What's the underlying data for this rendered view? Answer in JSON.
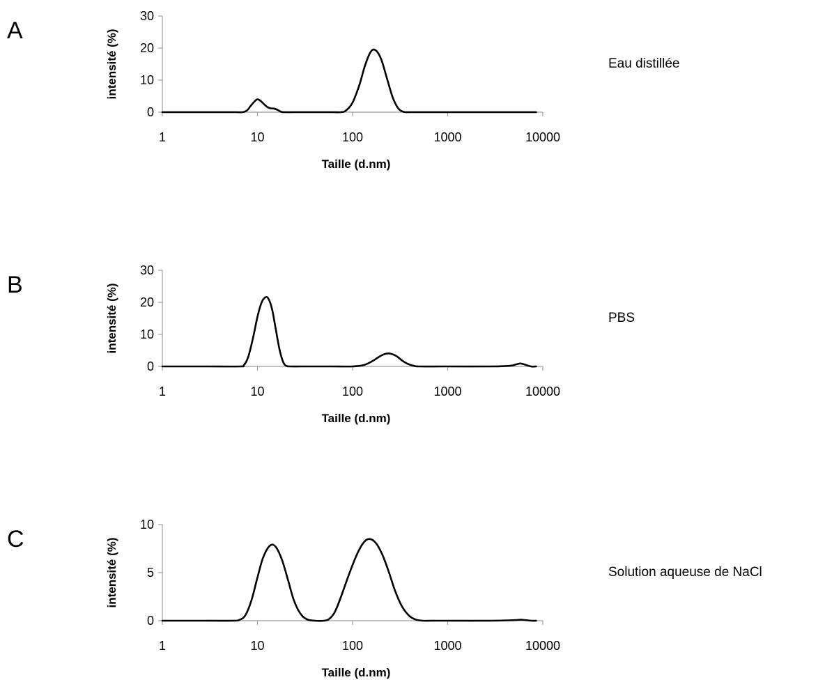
{
  "chart_data": [
    {
      "type": "line",
      "panel": "A",
      "sample_label": "Eau distillée",
      "xlabel": "Taille (d.nm)",
      "ylabel": "intensité (%)",
      "xscale": "log",
      "xlim": [
        1,
        10000
      ],
      "ylim": [
        0,
        30
      ],
      "xticks": [
        "1",
        "10",
        "100",
        "1000",
        "10000"
      ],
      "yticks": [
        "0",
        "10",
        "20",
        "30"
      ],
      "legend": "none",
      "grid": false,
      "series": [
        {
          "x": [
            1,
            2,
            4,
            6,
            7,
            7.8,
            8.5,
            9.3,
            10,
            10.8,
            11.8,
            12.7,
            13.7,
            15,
            16.3,
            17.5,
            19,
            25,
            40,
            60,
            75,
            85,
            100,
            118,
            135,
            155,
            175,
            200,
            230,
            265,
            300,
            330,
            360,
            400,
            600,
            1000,
            2000,
            5000,
            8500
          ],
          "y": [
            0,
            0,
            0,
            0,
            0,
            0.6,
            2.0,
            3.3,
            4.0,
            3.5,
            2.4,
            1.6,
            1.2,
            1.1,
            0.7,
            0.2,
            0,
            0,
            0,
            0,
            0,
            0.5,
            3.0,
            8.5,
            14.5,
            18.8,
            19.3,
            16.5,
            10.5,
            4.5,
            1.3,
            0.3,
            0,
            0,
            0,
            0,
            0,
            0,
            0
          ]
        }
      ]
    },
    {
      "type": "line",
      "panel": "B",
      "sample_label": "PBS",
      "xlabel": "Taille (d.nm)",
      "ylabel": "intensité (%)",
      "xscale": "log",
      "xlim": [
        1,
        10000
      ],
      "ylim": [
        0,
        30
      ],
      "xticks": [
        "1",
        "10",
        "100",
        "1000",
        "10000"
      ],
      "yticks": [
        "0",
        "10",
        "20",
        "30"
      ],
      "legend": "none",
      "grid": false,
      "series": [
        {
          "x": [
            1,
            3,
            6.5,
            7.2,
            8,
            9,
            10,
            11,
            12,
            13,
            14.2,
            15.5,
            17,
            18.5,
            20,
            22,
            30,
            60,
            100,
            130,
            160,
            190,
            220,
            250,
            290,
            330,
            380,
            440,
            500,
            1000,
            3000,
            4500,
            5200,
            5800,
            6600,
            7500,
            8500
          ],
          "y": [
            0,
            0,
            0,
            0.4,
            3.0,
            9.0,
            15.5,
            19.8,
            21.5,
            21.2,
            18.0,
            12.0,
            5.5,
            1.6,
            0.2,
            0,
            0,
            0,
            0,
            0.4,
            1.6,
            3.0,
            3.9,
            4.0,
            3.2,
            1.9,
            0.8,
            0.2,
            0,
            0,
            0,
            0.2,
            0.6,
            0.9,
            0.5,
            0,
            0
          ]
        }
      ]
    },
    {
      "type": "line",
      "panel": "C",
      "sample_label": "Solution aqueuse de NaCl",
      "xlabel": "Taille (d.nm)",
      "ylabel": "intensité (%)",
      "xscale": "log",
      "xlim": [
        1,
        10000
      ],
      "ylim": [
        0,
        10
      ],
      "xticks": [
        "1",
        "10",
        "100",
        "1000",
        "10000"
      ],
      "yticks": [
        "0",
        "5",
        "10"
      ],
      "legend": "none",
      "grid": false,
      "series": [
        {
          "x": [
            1,
            3,
            5.5,
            6.5,
            7.5,
            8.7,
            10,
            11.5,
            13.5,
            15.5,
            18,
            21,
            24,
            28,
            33,
            40,
            50,
            57,
            65,
            75,
            90,
            110,
            130,
            150,
            175,
            205,
            240,
            280,
            330,
            390,
            460,
            550,
            700,
            1000,
            3000,
            5000,
            6000,
            7500,
            8500
          ],
          "y": [
            0,
            0,
            0,
            0.1,
            0.6,
            2.2,
            4.5,
            6.6,
            7.8,
            7.7,
            6.4,
            4.2,
            2.2,
            0.8,
            0.15,
            0,
            0,
            0.2,
            0.9,
            2.4,
            4.6,
            6.8,
            8.1,
            8.5,
            8.1,
            6.9,
            5.1,
            3.1,
            1.5,
            0.55,
            0.12,
            0,
            0,
            0,
            0,
            0.06,
            0.1,
            0,
            0
          ]
        }
      ]
    }
  ]
}
